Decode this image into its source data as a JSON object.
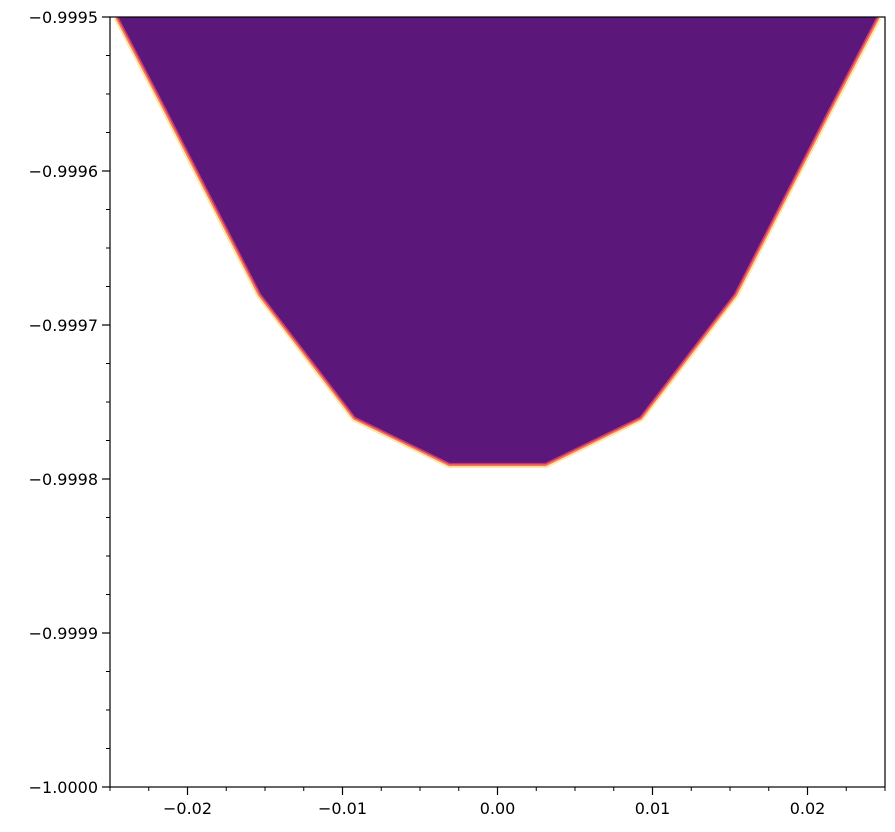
{
  "chart_data": {
    "type": "area",
    "title": "",
    "xlabel": "",
    "ylabel": "",
    "xlim": [
      -0.025,
      0.025
    ],
    "ylim": [
      -1.0,
      -0.9995
    ],
    "grid": false,
    "x_ticks": [
      {
        "value": -0.02,
        "label": "−0.02"
      },
      {
        "value": -0.01,
        "label": "−0.01"
      },
      {
        "value": 0.0,
        "label": "0.00"
      },
      {
        "value": 0.01,
        "label": "0.01"
      },
      {
        "value": 0.02,
        "label": "0.02"
      }
    ],
    "y_ticks": [
      {
        "value": -0.9995,
        "label": "−0.9995"
      },
      {
        "value": -0.9996,
        "label": "−0.9996"
      },
      {
        "value": -0.9997,
        "label": "−0.9997"
      },
      {
        "value": -0.9998,
        "label": "−0.9998"
      },
      {
        "value": -0.9999,
        "label": "−0.9999"
      },
      {
        "value": -1.0,
        "label": "−1.0000"
      }
    ],
    "x_minor_step": 0.0025,
    "y_minor_step": 2.5e-05,
    "boundary": {
      "x": [
        -0.0245,
        -0.0214,
        -0.0153,
        -0.0092,
        -0.0031,
        0.0031,
        0.0092,
        0.0153,
        0.0214,
        0.0245
      ],
      "y": [
        -0.9995,
        -0.99956,
        -0.99968,
        -0.99976,
        -0.99979,
        -0.99979,
        -0.99976,
        -0.99968,
        -0.99956,
        -0.9995
      ]
    },
    "colors": {
      "fill": "#5b177a",
      "edge_outer": "#fde9a8",
      "edge_mid": "#f8765c",
      "edge_inner": "#c3366e",
      "axis": "#000000"
    }
  }
}
